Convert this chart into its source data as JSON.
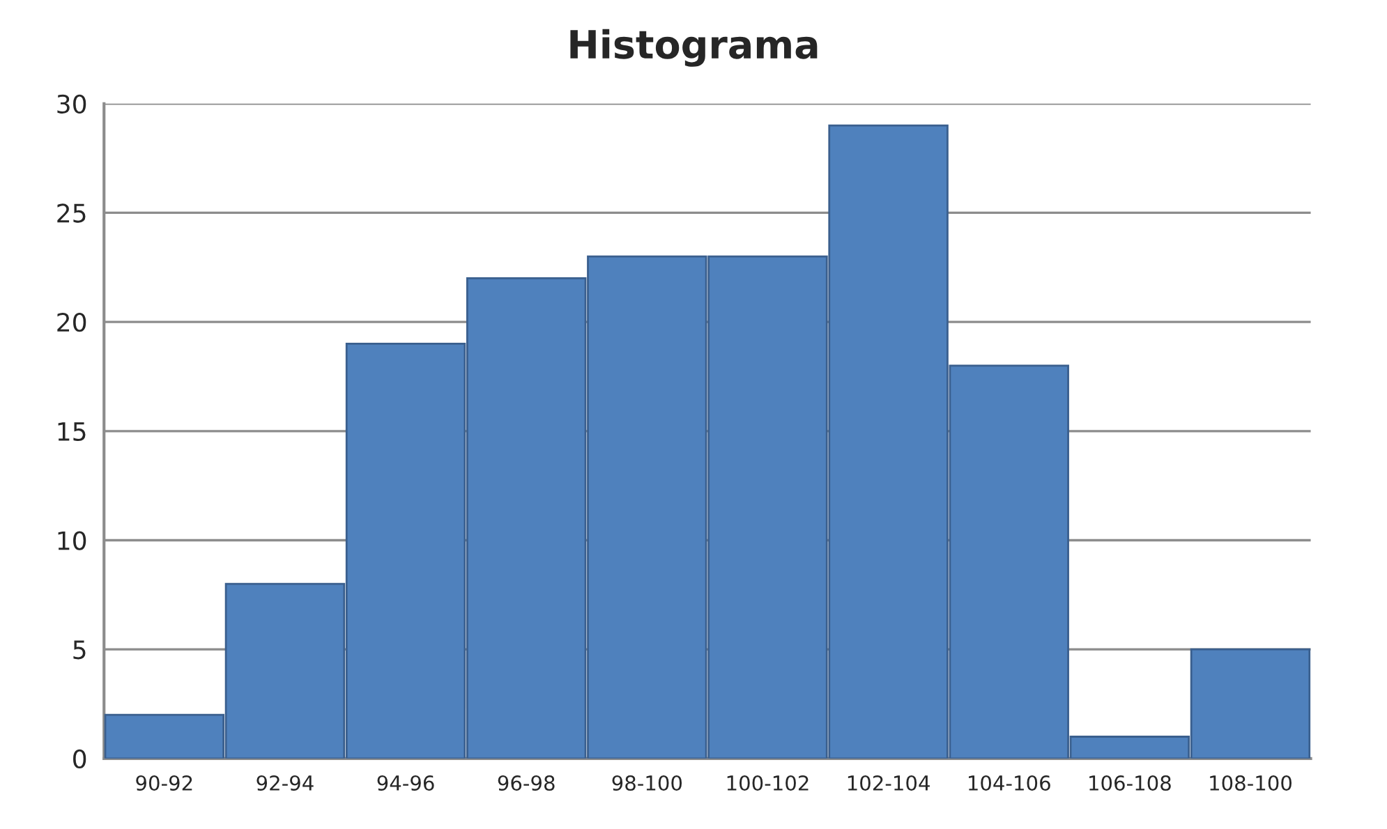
{
  "chart_data": {
    "type": "bar",
    "title": "Histograma",
    "categories": [
      "90-92",
      "92-94",
      "94-96",
      "96-98",
      "98-100",
      "100-102",
      "102-104",
      "104-106",
      "106-108",
      "108-100"
    ],
    "values": [
      2,
      8,
      19,
      22,
      23,
      23,
      29,
      18,
      1,
      5
    ],
    "color": "#4f81bd",
    "ylim": [
      0,
      30
    ],
    "yticks": [
      0,
      5,
      10,
      15,
      20,
      25,
      30
    ],
    "grid": "y"
  }
}
